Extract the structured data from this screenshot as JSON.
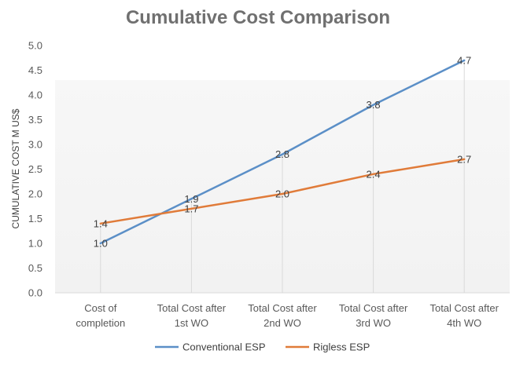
{
  "chart_data": {
    "type": "line",
    "title": "Cumulative Cost Comparison",
    "xlabel": "",
    "ylabel": "CUMULATIVE COST M US$",
    "ylim": [
      0,
      5
    ],
    "yticks": [
      "0.0",
      "0.5",
      "1.0",
      "1.5",
      "2.0",
      "2.5",
      "3.0",
      "3.5",
      "4.0",
      "4.5",
      "5.0"
    ],
    "categories": [
      [
        "Cost of",
        "completion"
      ],
      [
        "Total Cost after",
        "1st WO"
      ],
      [
        "Total Cost after",
        "2nd WO"
      ],
      [
        "Total Cost after",
        "3rd WO"
      ],
      [
        "Total Cost after",
        "4th WO"
      ]
    ],
    "series": [
      {
        "name": "Conventional ESP",
        "color": "#5B8FC7",
        "values": [
          1.0,
          1.9,
          2.8,
          3.8,
          4.7
        ],
        "labels": [
          "1.0",
          "1.9",
          "2.8",
          "3.8",
          "4.7"
        ]
      },
      {
        "name": "Rigless ESP",
        "color": "#E07B39",
        "values": [
          1.4,
          1.7,
          2.0,
          2.4,
          2.7
        ],
        "labels": [
          "1.4",
          "1.7",
          "2.0",
          "2.4",
          "2.7"
        ]
      }
    ],
    "grid": false,
    "drop_lines": true,
    "legend_position": "bottom"
  }
}
